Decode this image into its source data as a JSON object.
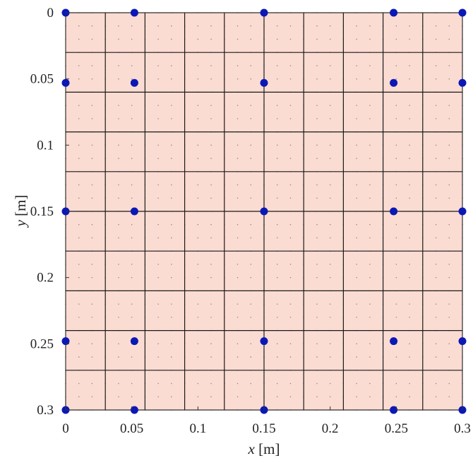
{
  "chart_data": {
    "type": "scatter",
    "title": "",
    "xlabel": {
      "var": "x",
      "unit": " [m]"
    },
    "ylabel": {
      "var": "y",
      "unit": " [m]"
    },
    "xlim": [
      0,
      0.3
    ],
    "ylim": [
      0,
      0.3
    ],
    "y_inverted": true,
    "x_ticks": [
      0,
      0.05,
      0.1,
      0.15,
      0.2,
      0.25,
      0.3
    ],
    "x_tick_labels": [
      "0",
      "0.05",
      "0.1",
      "0.15",
      "0.2",
      "0.25",
      "0.3"
    ],
    "y_ticks": [
      0,
      0.05,
      0.1,
      0.15,
      0.2,
      0.25,
      0.3
    ],
    "y_tick_labels": [
      "0",
      "0.05",
      "0.1",
      "0.15",
      "0.2",
      "0.25",
      "0.3"
    ],
    "mesh_x": [
      0,
      0.03,
      0.06,
      0.09,
      0.12,
      0.15,
      0.18,
      0.21,
      0.24,
      0.27,
      0.3
    ],
    "mesh_y": [
      0,
      0.03,
      0.06,
      0.09,
      0.12,
      0.15,
      0.18,
      0.21,
      0.24,
      0.27,
      0.3
    ],
    "dot_step": 0.01,
    "points": [
      {
        "x": 0,
        "y": 0
      },
      {
        "x": 0.052,
        "y": 0
      },
      {
        "x": 0.15,
        "y": 0
      },
      {
        "x": 0.248,
        "y": 0
      },
      {
        "x": 0.3,
        "y": 0
      },
      {
        "x": 0,
        "y": 0.053
      },
      {
        "x": 0.052,
        "y": 0.053
      },
      {
        "x": 0.15,
        "y": 0.053
      },
      {
        "x": 0.248,
        "y": 0.053
      },
      {
        "x": 0.3,
        "y": 0.053
      },
      {
        "x": 0,
        "y": 0.15
      },
      {
        "x": 0.052,
        "y": 0.15
      },
      {
        "x": 0.15,
        "y": 0.15
      },
      {
        "x": 0.248,
        "y": 0.15
      },
      {
        "x": 0.3,
        "y": 0.15
      },
      {
        "x": 0,
        "y": 0.248
      },
      {
        "x": 0.052,
        "y": 0.248
      },
      {
        "x": 0.15,
        "y": 0.248
      },
      {
        "x": 0.248,
        "y": 0.248
      },
      {
        "x": 0.3,
        "y": 0.248
      },
      {
        "x": 0,
        "y": 0.3
      },
      {
        "x": 0.052,
        "y": 0.3
      },
      {
        "x": 0.15,
        "y": 0.3
      },
      {
        "x": 0.248,
        "y": 0.3
      },
      {
        "x": 0.3,
        "y": 0.3
      }
    ],
    "grid": true,
    "colors": {
      "fill": "#fbdcd2",
      "mesh_line": "#1a1a1a",
      "dot": "#9a8a84",
      "point": "#0b18b5",
      "axis": "#333333"
    }
  }
}
